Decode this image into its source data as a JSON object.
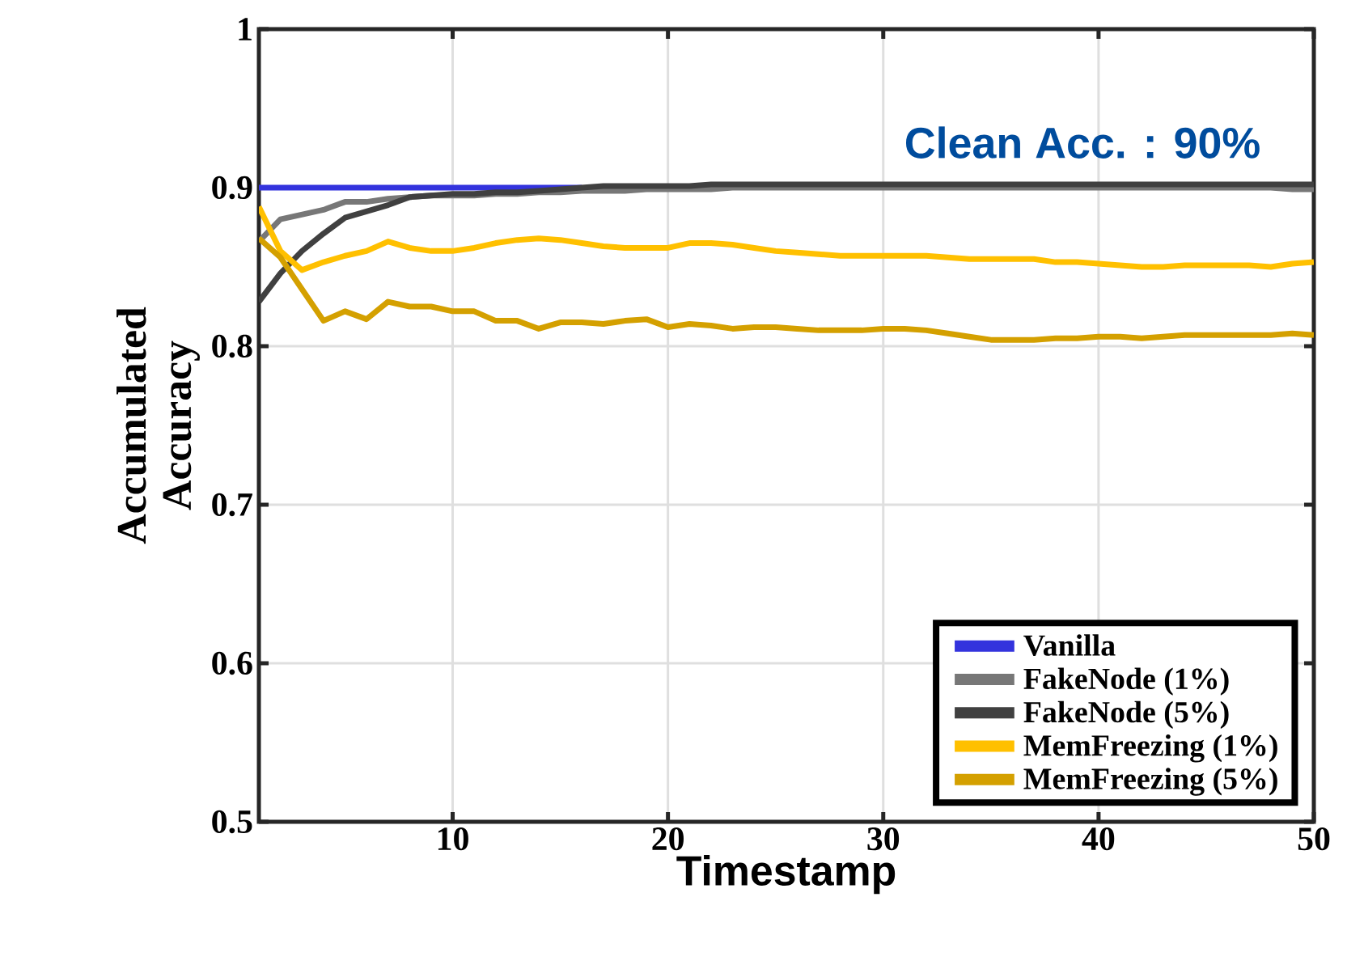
{
  "chart_data": {
    "type": "line",
    "xlabel": "Timestamp",
    "ylabel": "Accumulated Accuracy",
    "annotations": [
      "Clean Acc. : 90%"
    ],
    "x": [
      1,
      2,
      3,
      4,
      5,
      6,
      7,
      8,
      9,
      10,
      11,
      12,
      13,
      14,
      15,
      16,
      17,
      18,
      19,
      20,
      21,
      22,
      23,
      24,
      25,
      26,
      27,
      28,
      29,
      30,
      31,
      32,
      33,
      34,
      35,
      36,
      37,
      38,
      39,
      40,
      41,
      42,
      43,
      44,
      45,
      46,
      47,
      48,
      49,
      50
    ],
    "series": [
      {
        "name": "Vanilla",
        "color": "#3333dd",
        "values": [
          0.9,
          0.9,
          0.9,
          0.9,
          0.9,
          0.9,
          0.9,
          0.9,
          0.9,
          0.9,
          0.9,
          0.9,
          0.9,
          0.9,
          0.9,
          0.9,
          null,
          null,
          null,
          null,
          null,
          null,
          null,
          null,
          null,
          null,
          null,
          null,
          null,
          null,
          null,
          null,
          null,
          null,
          null,
          null,
          null,
          null,
          null,
          null,
          null,
          null,
          null,
          null,
          null,
          null,
          null,
          null,
          null,
          null
        ]
      },
      {
        "name": "FakeNode (1%)",
        "color": "#777777",
        "values": [
          0.866,
          0.88,
          0.883,
          0.886,
          0.891,
          0.891,
          0.893,
          0.894,
          0.895,
          0.895,
          0.895,
          0.896,
          0.896,
          0.897,
          0.897,
          0.898,
          0.898,
          0.898,
          0.899,
          0.899,
          0.899,
          0.899,
          0.9,
          0.9,
          0.9,
          0.9,
          0.9,
          0.9,
          0.9,
          0.9,
          0.9,
          0.9,
          0.9,
          0.9,
          0.9,
          0.9,
          0.9,
          0.9,
          0.9,
          0.9,
          0.9,
          0.9,
          0.9,
          0.9,
          0.9,
          0.9,
          0.9,
          0.9,
          0.899,
          0.899
        ]
      },
      {
        "name": "FakeNode (5%)",
        "color": "#404040",
        "values": [
          0.828,
          0.846,
          0.86,
          0.871,
          0.881,
          0.885,
          0.889,
          0.894,
          0.895,
          0.896,
          0.896,
          0.897,
          0.897,
          0.898,
          0.899,
          0.9,
          0.901,
          0.901,
          0.901,
          0.901,
          0.901,
          0.902,
          0.902,
          0.902,
          0.902,
          0.902,
          0.902,
          0.902,
          0.902,
          0.902,
          0.902,
          0.902,
          0.902,
          0.902,
          0.902,
          0.902,
          0.902,
          0.902,
          0.902,
          0.902,
          0.902,
          0.902,
          0.902,
          0.902,
          0.902,
          0.902,
          0.902,
          0.902,
          0.902,
          0.902
        ]
      },
      {
        "name": "MemFreezing (1%)",
        "color": "#ffc000",
        "values": [
          0.888,
          0.86,
          0.848,
          0.853,
          0.857,
          0.86,
          0.866,
          0.862,
          0.86,
          0.86,
          0.862,
          0.865,
          0.867,
          0.868,
          0.867,
          0.865,
          0.863,
          0.862,
          0.862,
          0.862,
          0.865,
          0.865,
          0.864,
          0.862,
          0.86,
          0.859,
          0.858,
          0.857,
          0.857,
          0.857,
          0.857,
          0.857,
          0.856,
          0.855,
          0.855,
          0.855,
          0.855,
          0.853,
          0.853,
          0.852,
          0.851,
          0.85,
          0.85,
          0.851,
          0.851,
          0.851,
          0.851,
          0.85,
          0.852,
          0.853
        ]
      },
      {
        "name": "MemFreezing (5%)",
        "color": "#d4a000",
        "values": [
          0.868,
          0.856,
          0.836,
          0.816,
          0.822,
          0.817,
          0.828,
          0.825,
          0.825,
          0.822,
          0.822,
          0.816,
          0.816,
          0.811,
          0.815,
          0.815,
          0.814,
          0.816,
          0.817,
          0.812,
          0.814,
          0.813,
          0.811,
          0.812,
          0.812,
          0.811,
          0.81,
          0.81,
          0.81,
          0.811,
          0.811,
          0.81,
          0.808,
          0.806,
          0.804,
          0.804,
          0.804,
          0.805,
          0.805,
          0.806,
          0.806,
          0.805,
          0.806,
          0.807,
          0.807,
          0.807,
          0.807,
          0.807,
          0.808,
          0.807
        ]
      }
    ],
    "xlim": [
      1,
      50
    ],
    "xticks": [
      10,
      20,
      30,
      40,
      50
    ],
    "ylim": [
      0.5,
      1
    ],
    "yticks": [
      0.5,
      0.6,
      0.7,
      0.8,
      0.9,
      1
    ],
    "grid": true,
    "legend": "bottom right",
    "line_style": "solid"
  }
}
